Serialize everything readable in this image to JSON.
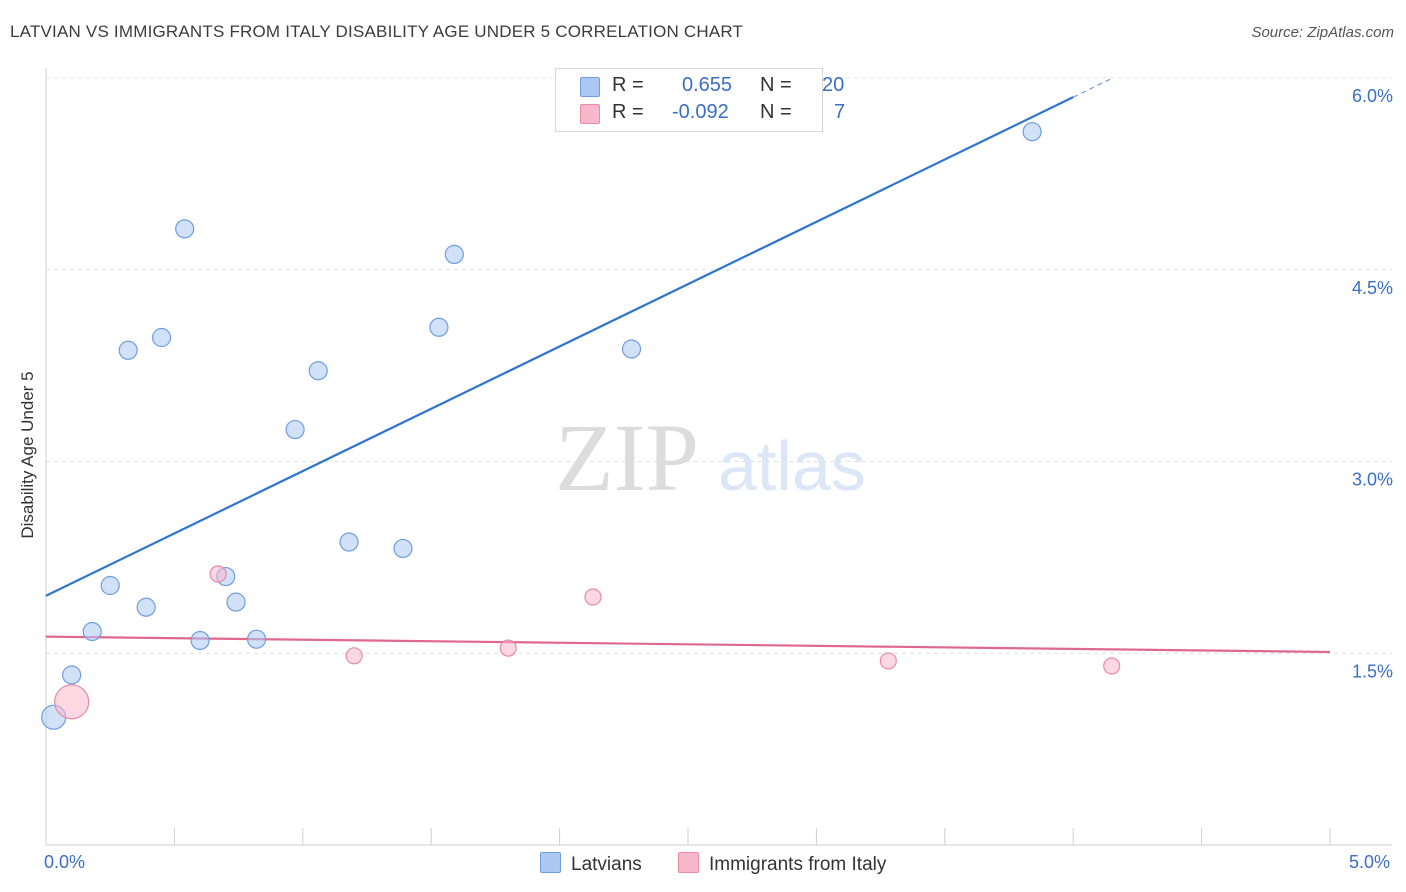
{
  "header": {
    "title": "LATVIAN VS IMMIGRANTS FROM ITALY DISABILITY AGE UNDER 5 CORRELATION CHART",
    "source": "Source: ZipAtlas.com"
  },
  "watermark": {
    "zip": "ZIP",
    "atlas": "atlas"
  },
  "legend_top": {
    "rows": [
      {
        "r_label": "R =",
        "r_value": "0.655",
        "n_label": "N =",
        "n_value": "20",
        "color": "#aac8f2",
        "border": "#6f9de0"
      },
      {
        "r_label": "R =",
        "r_value": "-0.092",
        "n_label": "N =",
        "n_value": "7",
        "color": "#f7b8cb",
        "border": "#e98aa7"
      }
    ]
  },
  "legend_bottom": {
    "latvians": "Latvians",
    "italy": "Immigrants from Italy"
  },
  "axes": {
    "ylabel": "Disability Age Under 5",
    "x_min_label": "0.0%",
    "x_max_label": "5.0%",
    "y_tick_labels": [
      "6.0%",
      "4.5%",
      "3.0%",
      "1.5%"
    ]
  },
  "colors": {
    "blue_fill": "#aac8f2",
    "blue_stroke": "#6f9de0",
    "blue_line": "#2f74cf",
    "pink_fill": "#f7b8cb",
    "pink_stroke": "#e98aa7",
    "pink_line": "#e0688f",
    "tick_text": "#3a6fc4",
    "grid": "#e0e0e0"
  },
  "chart_data": {
    "type": "scatter",
    "title": "LATVIAN VS IMMIGRANTS FROM ITALY DISABILITY AGE UNDER 5 CORRELATION CHART",
    "xlabel": "",
    "ylabel": "Disability Age Under 5",
    "xlim": [
      0,
      5.0
    ],
    "ylim": [
      0,
      6.0
    ],
    "y_ticks": [
      1.5,
      3.0,
      4.5,
      6.0
    ],
    "grid": true,
    "legend": "bottom",
    "series": [
      {
        "name": "Latvians",
        "R": 0.655,
        "N": 20,
        "points": [
          {
            "x": 0.03,
            "y": 1.0,
            "size": 12
          },
          {
            "x": 0.1,
            "y": 1.33,
            "size": 9
          },
          {
            "x": 0.18,
            "y": 1.67,
            "size": 9
          },
          {
            "x": 0.25,
            "y": 2.03,
            "size": 9
          },
          {
            "x": 0.32,
            "y": 3.87,
            "size": 9
          },
          {
            "x": 0.39,
            "y": 1.86,
            "size": 9
          },
          {
            "x": 0.45,
            "y": 3.97,
            "size": 9
          },
          {
            "x": 0.54,
            "y": 4.82,
            "size": 9
          },
          {
            "x": 0.6,
            "y": 1.6,
            "size": 9
          },
          {
            "x": 0.7,
            "y": 2.1,
            "size": 9
          },
          {
            "x": 0.74,
            "y": 1.9,
            "size": 9
          },
          {
            "x": 0.82,
            "y": 1.61,
            "size": 9
          },
          {
            "x": 0.97,
            "y": 3.25,
            "size": 9
          },
          {
            "x": 1.06,
            "y": 3.71,
            "size": 9
          },
          {
            "x": 1.18,
            "y": 2.37,
            "size": 9
          },
          {
            "x": 1.39,
            "y": 2.32,
            "size": 9
          },
          {
            "x": 1.53,
            "y": 4.05,
            "size": 9
          },
          {
            "x": 1.59,
            "y": 4.62,
            "size": 9
          },
          {
            "x": 2.28,
            "y": 3.88,
            "size": 9
          },
          {
            "x": 3.84,
            "y": 5.58,
            "size": 9
          }
        ],
        "trendline": {
          "x": [
            0.0,
            4.0
          ],
          "y": [
            1.95,
            5.85
          ],
          "dashed_extension_to_x": 4.15
        }
      },
      {
        "name": "Immigrants from Italy",
        "R": -0.092,
        "N": 7,
        "points": [
          {
            "x": 0.1,
            "y": 1.12,
            "size": 17
          },
          {
            "x": 0.67,
            "y": 2.12,
            "size": 8
          },
          {
            "x": 1.2,
            "y": 1.48,
            "size": 8
          },
          {
            "x": 1.8,
            "y": 1.54,
            "size": 8
          },
          {
            "x": 2.13,
            "y": 1.94,
            "size": 8
          },
          {
            "x": 3.28,
            "y": 1.44,
            "size": 8
          },
          {
            "x": 4.15,
            "y": 1.4,
            "size": 8
          }
        ],
        "trendline": {
          "x": [
            0.0,
            5.0
          ],
          "y": [
            1.63,
            1.51
          ]
        }
      }
    ]
  }
}
